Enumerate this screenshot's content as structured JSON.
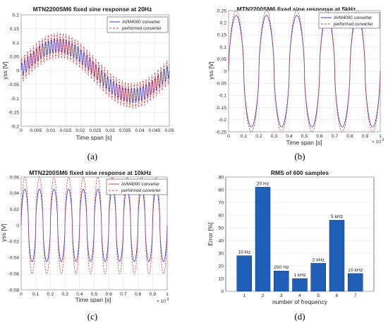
{
  "chart_data": [
    {
      "type": "line",
      "title": "MTN2200SM6 fixed sine response at 20Hz",
      "xlabel": "Time span [s]",
      "ylabel": "yss [V]",
      "xlim": [
        0,
        0.05
      ],
      "ylim": [
        -0.2,
        0.2
      ],
      "xticks": [
        "0",
        "0.005",
        "0.01",
        "0.015",
        "0.02",
        "0.025",
        "0.03",
        "0.035",
        "0.04",
        "0.045",
        "0.05"
      ],
      "yticks": [
        "-0.2",
        "-0.15",
        "-0.1",
        "-0.05",
        "0",
        "0.05",
        "0.1",
        "0.15",
        "0.2"
      ],
      "legend_position": "top-right",
      "grid": true,
      "caption": "(a)",
      "series": [
        {
          "name": "AVM4000 converter",
          "color": "#3333cc",
          "style": "solid",
          "signal": {
            "offset_amplitude": 0.09,
            "offset_freq_hz": 20,
            "ripple_amplitude": 0.025,
            "ripple_freq_hz": 1000
          }
        },
        {
          "name": "performed converter",
          "color": "#d94040",
          "style": "dashed",
          "signal": {
            "offset_amplitude": 0.09,
            "offset_freq_hz": 20,
            "ripple_amplitude": 0.045,
            "ripple_freq_hz": 1000
          }
        }
      ]
    },
    {
      "type": "line",
      "title": "MTN2200SM6 fixed sine response at 5kHz",
      "xlabel": "Time span [s]",
      "ylabel": "yss [V]",
      "x_multiplier": "× 10",
      "x_multiplier_exp": "-3",
      "xlim": [
        0,
        1
      ],
      "ylim": [
        -0.25,
        0.25
      ],
      "xticks": [
        "0",
        "0.1",
        "0.2",
        "0.3",
        "0.4",
        "0.5",
        "0.6",
        "0.7",
        "0.8",
        "0.9",
        "1"
      ],
      "yticks": [
        "-0.25",
        "-0.2",
        "-0.15",
        "-0.1",
        "-0.05",
        "0",
        "0.05",
        "0.1",
        "0.15",
        "0.2",
        "0.25"
      ],
      "legend_position": "top-right",
      "grid": true,
      "caption": "(b)",
      "series": [
        {
          "name": "AVM4000 converter",
          "color": "#3333cc",
          "style": "solid",
          "signal": {
            "amplitude": 0.23,
            "freq_per_ms": 5
          }
        },
        {
          "name": "performed converter",
          "color": "#d94040",
          "style": "dashed",
          "signal": {
            "amplitude": 0.25,
            "freq_per_ms": 5
          }
        }
      ]
    },
    {
      "type": "line",
      "title": "MTN2200SM6 fixed sine response at 10kHz",
      "xlabel": "Time span [s]",
      "ylabel": "yss [V]",
      "x_multiplier": "× 10",
      "x_multiplier_exp": "-3",
      "xlim": [
        0,
        1
      ],
      "ylim": [
        -0.08,
        0.06
      ],
      "xticks": [
        "0",
        "0.1",
        "0.2",
        "0.3",
        "0.4",
        "0.5",
        "0.6",
        "0.7",
        "0.8",
        "0.9",
        "1"
      ],
      "yticks": [
        "-0.08",
        "-0.06",
        "-0.04",
        "-0.02",
        "0",
        "0.02",
        "0.04",
        "0.06"
      ],
      "legend_position": "top-right",
      "grid": true,
      "caption": "(c)",
      "series": [
        {
          "name": "AVM4000 converter",
          "color": "#3333cc",
          "style": "solid",
          "signal": {
            "amplitude": 0.045,
            "freq_per_ms": 10
          }
        },
        {
          "name": "performed converter",
          "color": "#d94040",
          "style": "dashed",
          "signal": {
            "amplitude": 0.06,
            "freq_per_ms": 10
          }
        }
      ]
    },
    {
      "type": "bar",
      "title": "RMS of 600 samples",
      "xlabel": "number of frequency",
      "ylabel": "Error [%]",
      "categories": [
        "1",
        "2",
        "3",
        "4",
        "5",
        "6",
        "7"
      ],
      "values": [
        28,
        82,
        16,
        10,
        22,
        56,
        14
      ],
      "bar_labels": [
        "10 Hz",
        "20 Hz",
        "200 Hz",
        "1 kHz",
        "2 kHz",
        "5 kHz",
        "10 kHz"
      ],
      "ylim": [
        0,
        90
      ],
      "yticks": [
        "0",
        "10",
        "20",
        "30",
        "40",
        "50",
        "60",
        "70",
        "80",
        "90"
      ],
      "grid": true,
      "bar_color": "#1f5fb8",
      "caption": "(d)"
    }
  ]
}
